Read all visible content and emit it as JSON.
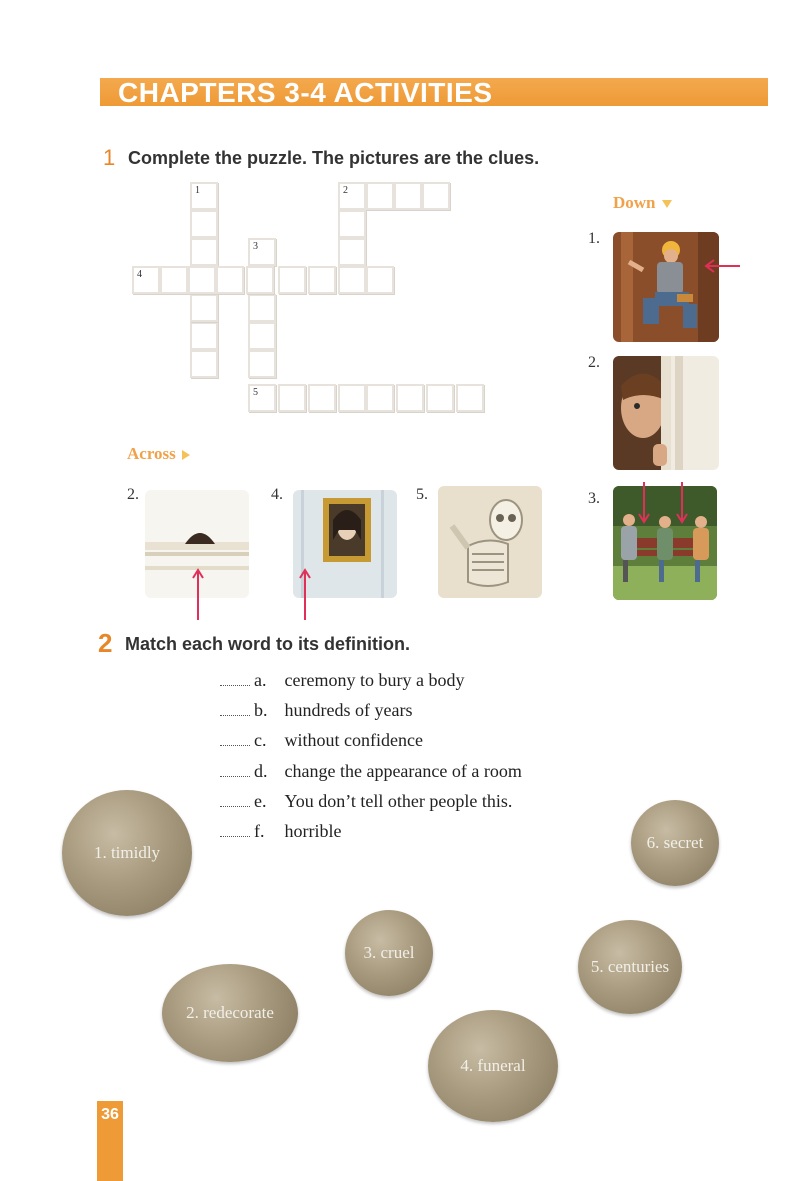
{
  "header": {
    "title": "CHAPTERS 3-4 ACTIVITIES"
  },
  "section1": {
    "number": "1",
    "instruction": "Complete the puzzle. The pictures are the clues.",
    "crossword_numbers": {
      "n1": "1",
      "n2": "2",
      "n3": "3",
      "n4": "4",
      "n5": "5"
    },
    "down_label": "Down",
    "across_label": "Across",
    "down_clues": [
      "1.",
      "2.",
      "3."
    ],
    "across_clues": [
      "2.",
      "4.",
      "5."
    ]
  },
  "section2": {
    "number": "2",
    "instruction": "Match each word to its definition.",
    "definitions": [
      {
        "letter": "a.",
        "text": "ceremony to bury a body"
      },
      {
        "letter": "b.",
        "text": "hundreds of years"
      },
      {
        "letter": "c.",
        "text": "without confidence"
      },
      {
        "letter": "d.",
        "text": "change the appearance of a room"
      },
      {
        "letter": "e.",
        "text": "You don’t tell other people this."
      },
      {
        "letter": "f.",
        "text": "horrible"
      }
    ],
    "words": [
      "1. timidly",
      "2. redecorate",
      "3. cruel",
      "4. funeral",
      "5. centuries",
      "6. secret"
    ]
  },
  "footer": {
    "page_number": "36"
  },
  "colors": {
    "accent": "#ee9a36",
    "clue_label": "#f0a24a",
    "stone": "#a89a7e"
  },
  "icons": [
    "triangle-down-icon",
    "triangle-right-icon",
    "arrow-up-icon"
  ]
}
